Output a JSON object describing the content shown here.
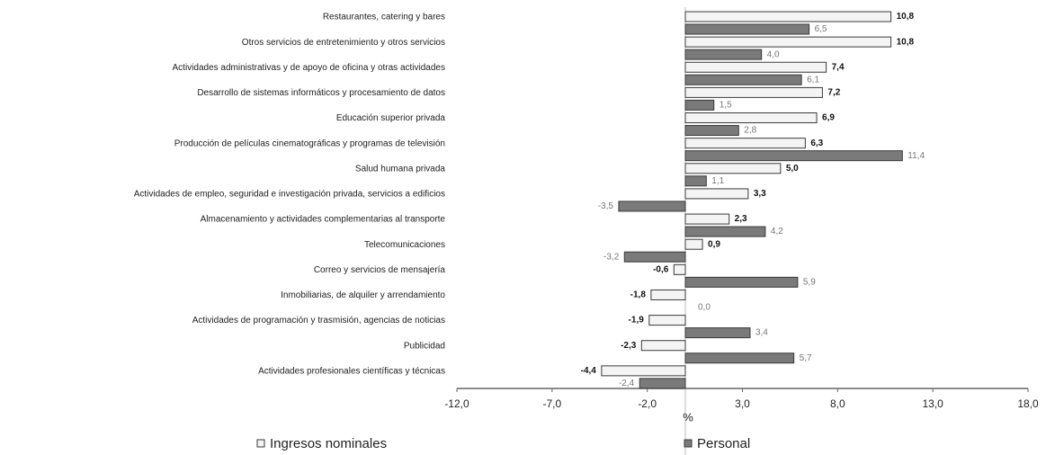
{
  "chart_data": {
    "type": "hbar",
    "categories": [
      "Restaurantes, catering y bares",
      "Otros servicios de entretenimiento y otros servicios",
      "Actividades administrativas y de apoyo de oficina y otras actividades",
      "Desarrollo de sistemas informáticos y procesamiento de datos",
      "Educación superior privada",
      "Producción de películas cinematográficas y programas de televisión",
      "Salud humana privada",
      "Actividades de empleo, seguridad e investigación privada, servicios a edificios",
      "Almacenamiento y actividades complementarias al transporte",
      "Telecomunicaciones",
      "Correo y servicios de mensajería",
      "Inmobiliarias, de alquiler y arrendamiento",
      "Actividades de programación y trasmisión, agencias de noticias",
      "Publicidad",
      "Actividades profesionales científicas y técnicas"
    ],
    "series": [
      {
        "name": "Ingresos nominales",
        "color": "#f4f4f4",
        "values": [
          10.8,
          10.8,
          7.4,
          7.2,
          6.9,
          6.3,
          5.0,
          3.3,
          2.3,
          0.9,
          -0.6,
          -1.8,
          -1.9,
          -2.3,
          -4.4
        ],
        "value_labels": [
          "10,8",
          "10,8",
          "7,4",
          "7,2",
          "6,9",
          "6,3",
          "5,0",
          "3,3",
          "2,3",
          "0,9",
          "-0,6",
          "-1,8",
          "-1,9",
          "-2,3",
          "-4,4"
        ]
      },
      {
        "name": "Personal",
        "color": "#7a7a7a",
        "values": [
          6.5,
          4.0,
          6.1,
          1.5,
          2.8,
          11.4,
          1.1,
          -3.5,
          4.2,
          -3.2,
          5.9,
          0.0,
          3.4,
          5.7,
          -2.4
        ],
        "value_labels": [
          "6,5",
          "4,0",
          "6,1",
          "1,5",
          "2,8",
          "11,4",
          "1,1",
          "-3,5",
          "4,2",
          "-3,2",
          "5,9",
          "0,0",
          "3,4",
          "5,7",
          "-2,4"
        ]
      }
    ],
    "xlabel": "%",
    "xlim": [
      -12,
      18
    ],
    "xticks": [
      {
        "value": -12,
        "label": "-12,0"
      },
      {
        "value": -7,
        "label": "-7,0"
      },
      {
        "value": -2,
        "label": "-2,0"
      },
      {
        "value": 3,
        "label": "3,0"
      },
      {
        "value": 8,
        "label": "8,0"
      },
      {
        "value": 13,
        "label": "13,0"
      },
      {
        "value": 18,
        "label": "18,0"
      }
    ],
    "legend": "bottom"
  }
}
